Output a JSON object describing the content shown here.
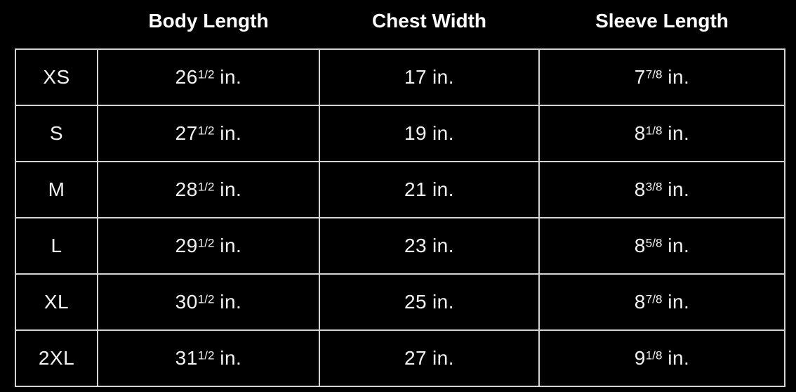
{
  "chart_data": {
    "type": "table",
    "columns": [
      "",
      "Body Length",
      "Chest Width",
      "Sleeve Length"
    ],
    "rows": [
      [
        "XS",
        "26 1/2 in.",
        "17 in.",
        "7 7/8 in."
      ],
      [
        "S",
        "27 1/2 in.",
        "19 in.",
        "8 1/8 in."
      ],
      [
        "M",
        "28 1/2 in.",
        "21 in.",
        "8 3/8 in."
      ],
      [
        "L",
        "29 1/2 in.",
        "23 in.",
        "8 5/8 in."
      ],
      [
        "XL",
        "30 1/2 in.",
        "25 in.",
        "8 7/8 in."
      ],
      [
        "2XL",
        "31 1/2 in.",
        "27 in.",
        "9 1/8 in."
      ]
    ],
    "title": "",
    "layout": {
      "grid": "on",
      "header_row": "borderless",
      "body_grid": "full"
    }
  },
  "table": {
    "unit": "in.",
    "headers": {
      "size": "",
      "body": "Body Length",
      "chest": "Chest Width",
      "sleeve": "Sleeve Length"
    },
    "rows": [
      {
        "size": "XS",
        "body_num": "26",
        "body_frac": "1/2",
        "chest_num": "17",
        "chest_frac": "",
        "sleeve_num": "7",
        "sleeve_frac": "7/8"
      },
      {
        "size": "S",
        "body_num": "27",
        "body_frac": "1/2",
        "chest_num": "19",
        "chest_frac": "",
        "sleeve_num": "8",
        "sleeve_frac": "1/8"
      },
      {
        "size": "M",
        "body_num": "28",
        "body_frac": "1/2",
        "chest_num": "21",
        "chest_frac": "",
        "sleeve_num": "8",
        "sleeve_frac": "3/8"
      },
      {
        "size": "L",
        "body_num": "29",
        "body_frac": "1/2",
        "chest_num": "23",
        "chest_frac": "",
        "sleeve_num": "8",
        "sleeve_frac": "5/8"
      },
      {
        "size": "XL",
        "body_num": "30",
        "body_frac": "1/2",
        "chest_num": "25",
        "chest_frac": "",
        "sleeve_num": "8",
        "sleeve_frac": "7/8"
      },
      {
        "size": "2XL",
        "body_num": "31",
        "body_frac": "1/2",
        "chest_num": "27",
        "chest_frac": "",
        "sleeve_num": "9",
        "sleeve_frac": "1/8"
      }
    ],
    "colors": {
      "background": "#000000",
      "border": "#d4d4d4",
      "cell_text": "#f2f2f2",
      "header_text": "#ffffff"
    }
  }
}
